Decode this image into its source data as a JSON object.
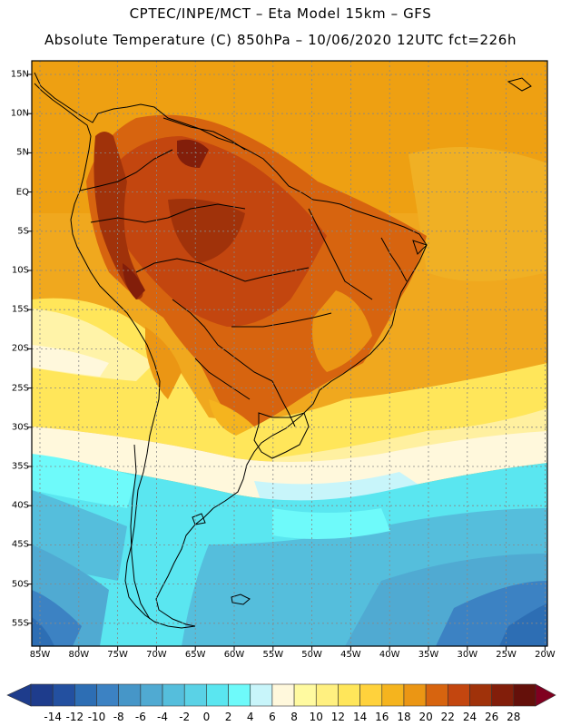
{
  "header": {
    "line1": "CPTEC/INPE/MCT –  Eta Model 15km – GFS",
    "line2": "Absolute Temperature (C) 850hPa – 10/06/2020 12UTC fct=226h"
  },
  "map": {
    "lat_ticks": [
      "15N",
      "10N",
      "5N",
      "EQ",
      "5S",
      "10S",
      "15S",
      "20S",
      "25S",
      "30S",
      "35S",
      "40S",
      "45S",
      "50S",
      "55S"
    ],
    "lon_ticks": [
      "85W",
      "80W",
      "75W",
      "70W",
      "65W",
      "60W",
      "55W",
      "50W",
      "45W",
      "40W",
      "35W",
      "30W",
      "25W",
      "20W"
    ]
  },
  "colorbar": {
    "labels": [
      "-14",
      "-12",
      "-10",
      "-8",
      "-6",
      "-4",
      "-2",
      "0",
      "2",
      "4",
      "6",
      "8",
      "10",
      "12",
      "14",
      "16",
      "18",
      "20",
      "22",
      "24",
      "26",
      "28"
    ],
    "colors": [
      "#1e3c8c",
      "#2350a0",
      "#2d6eb4",
      "#3c82c3",
      "#4696c8",
      "#50aad2",
      "#55bedc",
      "#5ad2e6",
      "#5ae6f0",
      "#6efafa",
      "#c8f5fa",
      "#fff8dc",
      "#fffaa0",
      "#fff080",
      "#ffe65a",
      "#ffd23c",
      "#f5b41e",
      "#eb9614",
      "#d7640f",
      "#c3460f",
      "#a0320a",
      "#821e0a",
      "#64100a"
    ]
  }
}
